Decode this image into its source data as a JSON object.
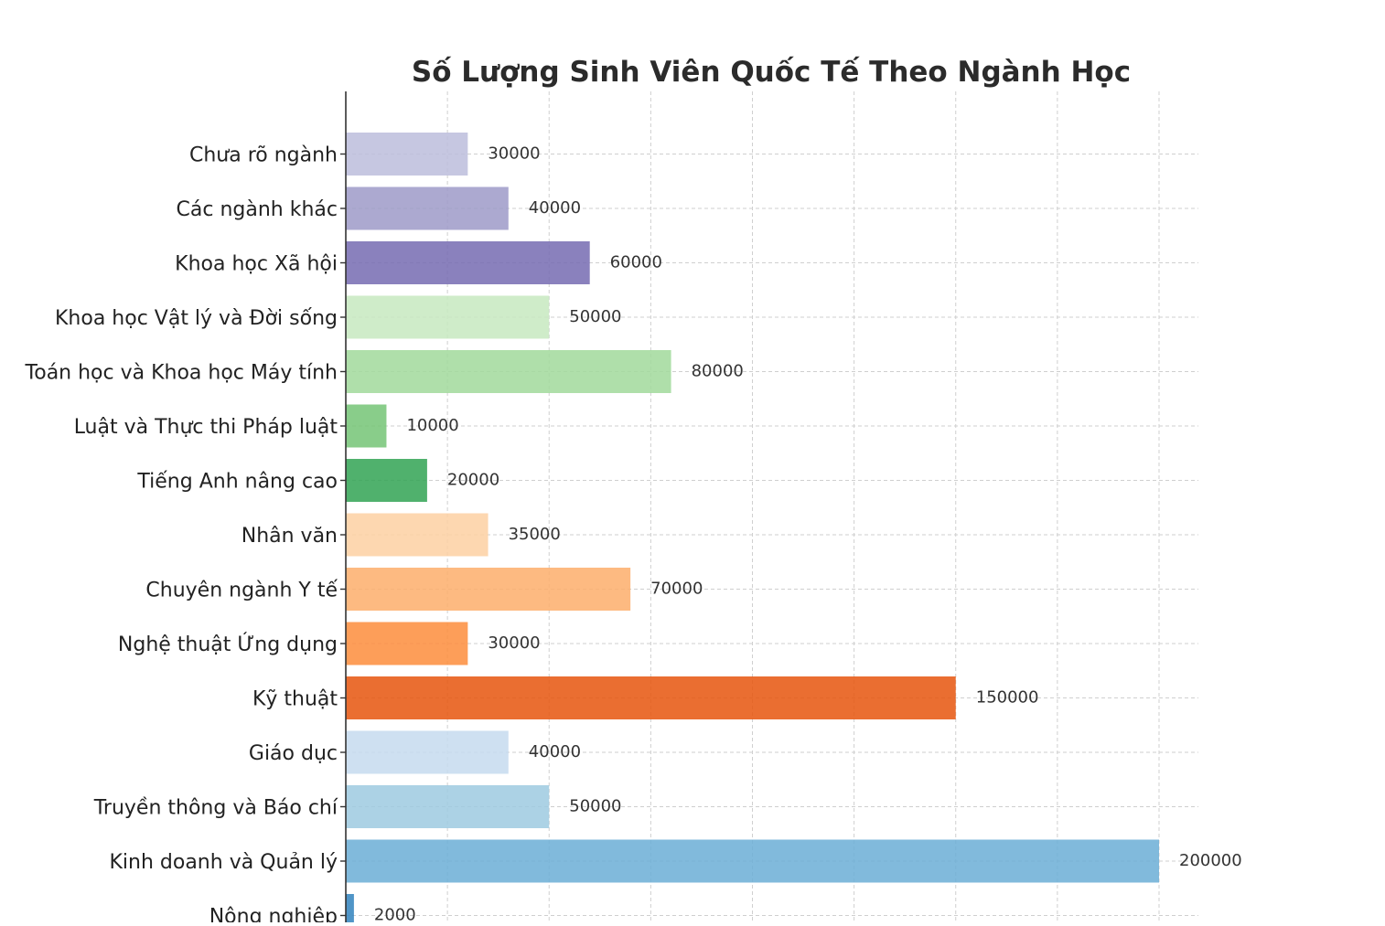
{
  "chart_data": {
    "type": "bar",
    "orientation": "horizontal",
    "title": "Số Lượng Sinh Viên Quốc Tế Theo Ngành Học",
    "xlabel": "",
    "ylabel": "",
    "xlim": [
      0,
      210000
    ],
    "grid": true,
    "categories": [
      "Chưa rõ ngành",
      "Các ngành khác",
      "Khoa học Xã hội",
      "Khoa học Vật lý và Đời sống",
      "Toán học và Khoa học Máy tính",
      "Luật và Thực thi Pháp luật",
      "Tiếng Anh nâng cao",
      "Nhân văn",
      "Chuyên ngành Y tế",
      "Nghệ thuật Ứng dụng",
      "Kỹ thuật",
      "Giáo dục",
      "Truyền thông và Báo chí",
      "Kinh doanh và Quản lý",
      "Nông nghiệp"
    ],
    "values": [
      30000,
      40000,
      60000,
      50000,
      80000,
      10000,
      20000,
      35000,
      70000,
      30000,
      150000,
      40000,
      50000,
      200000,
      2000
    ],
    "colors": [
      "#bcbddc",
      "#9e9ac8",
      "#756bb1",
      "#c7e9c0",
      "#a1d99b",
      "#74c476",
      "#31a354",
      "#fdd0a2",
      "#fdae6b",
      "#fd8d3c",
      "#e6550d",
      "#c6dbef",
      "#9ecae1",
      "#6baed6",
      "#3182bd"
    ],
    "bar_opacity": 0.85
  }
}
